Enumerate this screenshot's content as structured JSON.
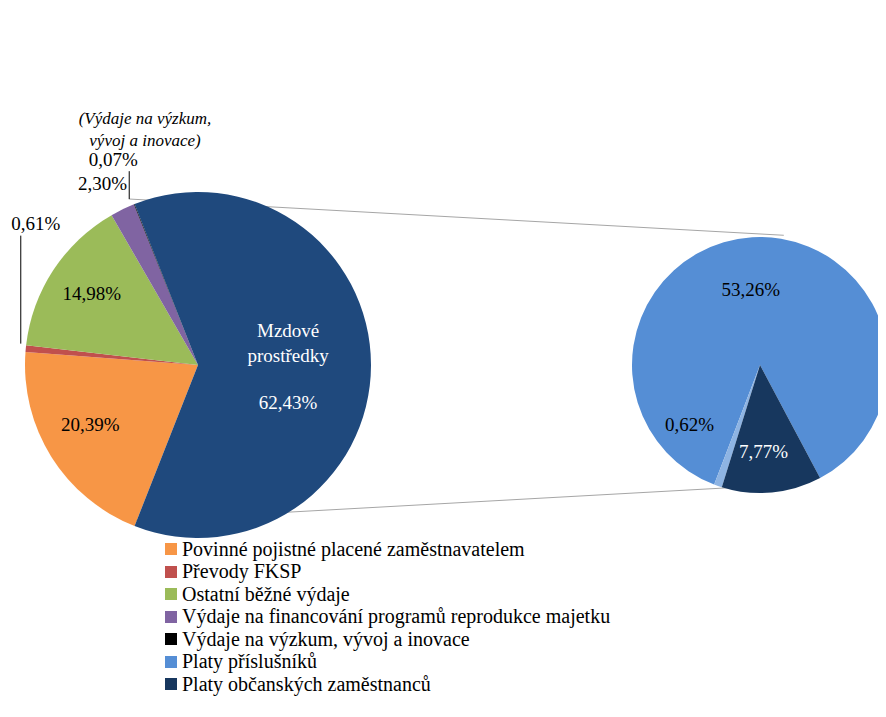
{
  "chart_data": {
    "type": "pie",
    "data_labels": true,
    "legend": "bottom",
    "annotation": "(Výdaje na výzkum, vývoj a inovace)",
    "categories": [
      "Povinné pojistné placené zaměstnavatelem",
      "Převody FKSP",
      "Ostatní běžné výdaje",
      "Výdaje na financování programů reprodukce majetku",
      "Výdaje na výzkum, vývoj a inovace",
      "Mzdové prostředky"
    ],
    "values": [
      20.39,
      0.61,
      14.98,
      2.3,
      0.07,
      62.43
    ],
    "value_labels": [
      "20,39%",
      "0,61%",
      "14,98%",
      "2,30%",
      "0,07%",
      "62,43%"
    ],
    "colors": [
      "#F79646",
      "#C0504D",
      "#9BBB59",
      "#8064A2",
      "#000000",
      "#1F497D"
    ],
    "breakdown": {
      "of": "Mzdové prostředky",
      "categories": [
        "Platy příslušníků",
        null,
        "Platy občanských zaměstnanců"
      ],
      "values": [
        53.26,
        0.62,
        7.77
      ],
      "value_labels": [
        "53,26%",
        "0,62%",
        "7,77%"
      ],
      "colors": [
        "#558ED5",
        "#8EB4E3",
        "#17375E"
      ]
    }
  }
}
